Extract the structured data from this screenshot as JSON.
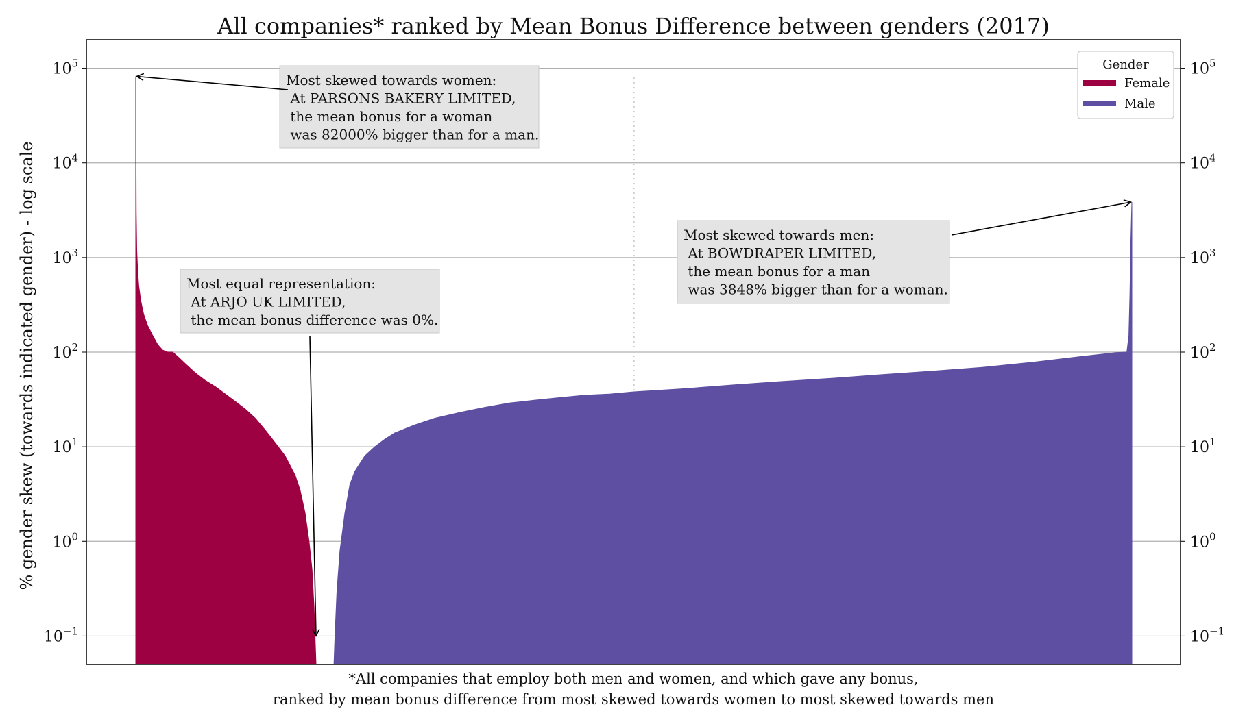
{
  "chart_data": {
    "type": "area",
    "title": "All companies* ranked by Mean Bonus Difference between genders (2017)",
    "ylabel": "% gender skew (towards indicated gender) - log scale",
    "xlabel": "*All companies that employ both men and women, and which gave any bonus,\nranked by mean bonus difference from most skewed towards women to most skewed towards men",
    "yscale": "log",
    "ylim": [
      0.05,
      200000
    ],
    "yticks": [
      {
        "value": 0.1,
        "base": "10",
        "exp": "−1"
      },
      {
        "value": 1,
        "base": "10",
        "exp": "0"
      },
      {
        "value": 10,
        "base": "10",
        "exp": "1"
      },
      {
        "value": 100,
        "base": "10",
        "exp": "2"
      },
      {
        "value": 1000,
        "base": "10",
        "exp": "3"
      },
      {
        "value": 10000,
        "base": "10",
        "exp": "4"
      },
      {
        "value": 100000,
        "base": "10",
        "exp": "5"
      }
    ],
    "grid": "horizontal",
    "rank_range": [
      0,
      1000
    ],
    "median_line_rank": 500,
    "legend": {
      "title": "Gender",
      "position": "top-right",
      "entries": [
        {
          "name": "Female",
          "color": "#9e0142"
        },
        {
          "name": "Male",
          "color": "#5e4fa2"
        }
      ]
    },
    "series": [
      {
        "name": "Female",
        "color": "#9e0142",
        "points": [
          [
            0,
            82000
          ],
          [
            0.5,
            3000
          ],
          [
            1,
            1200
          ],
          [
            2,
            700
          ],
          [
            3,
            500
          ],
          [
            5,
            350
          ],
          [
            8,
            250
          ],
          [
            12,
            190
          ],
          [
            17,
            150
          ],
          [
            22,
            120
          ],
          [
            27,
            105
          ],
          [
            32,
            100
          ],
          [
            37,
            100
          ],
          [
            42,
            90
          ],
          [
            50,
            75
          ],
          [
            60,
            60
          ],
          [
            70,
            50
          ],
          [
            80,
            43
          ],
          [
            90,
            36
          ],
          [
            100,
            30
          ],
          [
            110,
            25
          ],
          [
            120,
            20
          ],
          [
            130,
            15
          ],
          [
            140,
            11
          ],
          [
            150,
            8
          ],
          [
            160,
            5
          ],
          [
            165,
            3.5
          ],
          [
            170,
            2
          ],
          [
            174,
            1
          ],
          [
            177,
            0.5
          ],
          [
            179,
            0.2
          ],
          [
            180,
            0.1
          ],
          [
            181,
            0.05
          ]
        ]
      },
      {
        "name": "Male",
        "color": "#5e4fa2",
        "points": [
          [
            199,
            0.05
          ],
          [
            200,
            0.1
          ],
          [
            202,
            0.3
          ],
          [
            205,
            0.8
          ],
          [
            210,
            2
          ],
          [
            215,
            4
          ],
          [
            220,
            5.5
          ],
          [
            230,
            8
          ],
          [
            240,
            10
          ],
          [
            250,
            12
          ],
          [
            260,
            14
          ],
          [
            280,
            17
          ],
          [
            300,
            20
          ],
          [
            325,
            23
          ],
          [
            350,
            26
          ],
          [
            375,
            29
          ],
          [
            400,
            31
          ],
          [
            425,
            33
          ],
          [
            450,
            35
          ],
          [
            475,
            36
          ],
          [
            500,
            38
          ],
          [
            550,
            41
          ],
          [
            600,
            45
          ],
          [
            650,
            49
          ],
          [
            700,
            53
          ],
          [
            750,
            58
          ],
          [
            800,
            63
          ],
          [
            850,
            69
          ],
          [
            900,
            78
          ],
          [
            950,
            90
          ],
          [
            985,
            99
          ],
          [
            995,
            100
          ],
          [
            997,
            150
          ],
          [
            998,
            400
          ],
          [
            999,
            1500
          ],
          [
            1000,
            3848
          ]
        ]
      }
    ],
    "annotations": [
      {
        "id": "women",
        "lines": [
          "Most skewed towards women:",
          " At PARSONS BAKERY LIMITED,",
          " the mean bonus for a woman",
          " was 82000% bigger than for a man."
        ],
        "arrow_to": [
          1,
          82000
        ]
      },
      {
        "id": "equal",
        "lines": [
          "Most equal representation:",
          " At ARJO UK LIMITED,",
          " the mean bonus difference was 0%."
        ],
        "arrow_to": [
          181,
          0.1
        ]
      },
      {
        "id": "men",
        "lines": [
          "Most skewed towards men:",
          " At BOWDRAPER LIMITED,",
          " the mean bonus for a man",
          " was 3848% bigger than for a woman."
        ],
        "arrow_to": [
          999,
          3848
        ]
      }
    ]
  }
}
